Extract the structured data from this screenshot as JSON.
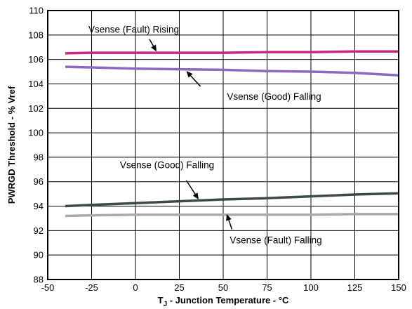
{
  "chart_data": {
    "type": "line",
    "title": "",
    "xlabel_main": "T",
    "xlabel_sub": "J",
    "xlabel_rest": " - Junction Temperature - °C",
    "ylabel": "PWRGD Threshold - % Vref",
    "xlim": [
      -50,
      150
    ],
    "ylim": [
      88,
      110
    ],
    "x_ticks": [
      -50,
      -25,
      0,
      25,
      50,
      75,
      100,
      125,
      150
    ],
    "y_ticks": [
      88,
      90,
      92,
      94,
      96,
      98,
      100,
      102,
      104,
      106,
      108,
      110
    ],
    "grid": true,
    "legend": "none",
    "series": [
      {
        "name": "Vsense (Fault) Rising",
        "color": "#c8277f",
        "x": [
          -40,
          -25,
          0,
          25,
          50,
          75,
          100,
          125,
          150
        ],
        "y": [
          106.5,
          106.55,
          106.55,
          106.55,
          106.55,
          106.6,
          106.6,
          106.65,
          106.65
        ]
      },
      {
        "name": "Vsense (Good) Falling",
        "color": "#8f68c4",
        "x": [
          -40,
          -25,
          0,
          25,
          50,
          75,
          100,
          125,
          150
        ],
        "y": [
          105.4,
          105.35,
          105.25,
          105.2,
          105.15,
          105.05,
          105.0,
          104.9,
          104.7
        ]
      },
      {
        "name": "Vsense (Good) Falling",
        "color": "#3d4a45",
        "x": [
          -40,
          -25,
          0,
          25,
          50,
          75,
          100,
          125,
          150
        ],
        "y": [
          94.0,
          94.1,
          94.25,
          94.4,
          94.55,
          94.65,
          94.8,
          94.95,
          95.05
        ]
      },
      {
        "name": "Vsense (Fault) Falling",
        "color": "#a8aaa8",
        "x": [
          -40,
          -25,
          0,
          25,
          50,
          75,
          100,
          125,
          150
        ],
        "y": [
          93.2,
          93.25,
          93.3,
          93.3,
          93.3,
          93.3,
          93.3,
          93.35,
          93.35
        ]
      }
    ],
    "annotations": [
      {
        "text": "Vsense (Fault) Rising",
        "text_x": -1,
        "text_y": 108.2,
        "anchor": "middle",
        "arrow_from": [
          8,
          107.65
        ],
        "arrow_to": [
          12,
          106.65
        ]
      },
      {
        "text": "Vsense (Good) Falling",
        "text_x": 79,
        "text_y": 102.7,
        "anchor": "middle",
        "arrow_from": [
          37,
          103.8
        ],
        "arrow_to": [
          29,
          105.05
        ]
      },
      {
        "text": "Vsense (Good) Falling",
        "text_x": 18,
        "text_y": 97.1,
        "anchor": "middle",
        "arrow_from": [
          29,
          96.1
        ],
        "arrow_to": [
          36,
          94.55
        ]
      },
      {
        "text": "Vsense (Fault) Falling",
        "text_x": 80,
        "text_y": 90.95,
        "anchor": "middle",
        "arrow_from": [
          55,
          92.1
        ],
        "arrow_to": [
          52,
          93.35
        ]
      }
    ]
  }
}
